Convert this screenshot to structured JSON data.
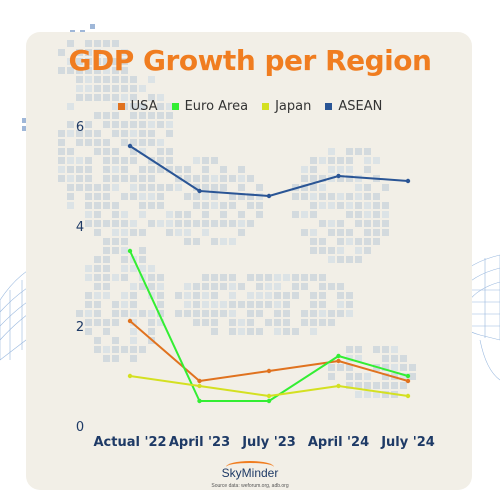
{
  "title": "GDP Growth per Region",
  "brand": {
    "name": "SkyMinder",
    "source": "Source data: weforum.org, adb.org"
  },
  "colors": {
    "title": "#f07d20",
    "card": "#f2efe7",
    "axis_text": "#1e3a66",
    "USA": "#e0721f",
    "Euro Area": "#33ee33",
    "Japan": "#d4e021",
    "ASEAN": "#2a5595"
  },
  "chart_data": {
    "type": "line",
    "title": "GDP Growth per Region",
    "categories": [
      "Actual '22",
      "April '23",
      "July '23",
      "April '24",
      "July '24"
    ],
    "ylim": [
      0,
      6
    ],
    "yticks": [
      0,
      2,
      4,
      6
    ],
    "grid": false,
    "legend": "top",
    "series": [
      {
        "name": "USA",
        "values": [
          2.1,
          0.9,
          1.1,
          1.3,
          0.9
        ]
      },
      {
        "name": "Euro Area",
        "values": [
          3.5,
          0.5,
          0.5,
          1.4,
          1.0
        ]
      },
      {
        "name": "Japan",
        "values": [
          1.0,
          0.8,
          0.6,
          0.8,
          0.6
        ]
      },
      {
        "name": "ASEAN",
        "values": [
          5.6,
          4.7,
          4.6,
          5.0,
          4.9
        ]
      }
    ]
  }
}
